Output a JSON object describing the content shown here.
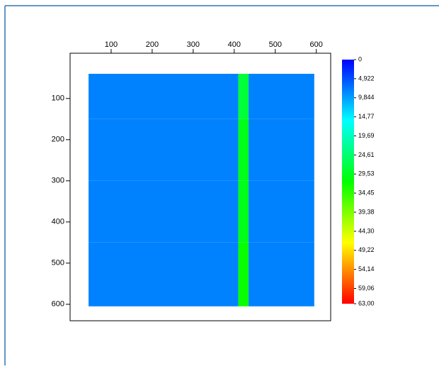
{
  "chart_data": {
    "type": "heatmap",
    "x": [
      45,
      410,
      435,
      595
    ],
    "y": [
      40,
      150,
      300,
      450,
      605
    ],
    "z": [
      [
        8,
        28,
        8
      ],
      [
        8,
        30,
        8
      ],
      [
        8,
        30,
        8
      ],
      [
        8,
        32,
        8
      ]
    ],
    "xlim": [
      0,
      635
    ],
    "ylim": [
      -10,
      640
    ],
    "y_inverted": true,
    "xticks": [
      100,
      200,
      300,
      400,
      500,
      600
    ],
    "yticks": [
      100,
      200,
      300,
      400,
      500,
      600
    ],
    "colormap": [
      "#0000ff",
      "#00ffff",
      "#00ff00",
      "#ffff00",
      "#ff0000"
    ],
    "colorbar_lim": [
      0,
      63
    ],
    "colorbar_ticks": [
      0,
      {
        "value": 4.922,
        "label": "4,922"
      },
      {
        "value": 9.844,
        "label": "9,844"
      },
      {
        "value": 14.77,
        "label": "14,77"
      },
      {
        "value": 19.69,
        "label": "19,69"
      },
      {
        "value": 24.61,
        "label": "24,61"
      },
      {
        "value": 29.53,
        "label": "29,53"
      },
      {
        "value": 34.45,
        "label": "34,45"
      },
      {
        "value": 39.38,
        "label": "39,38"
      },
      {
        "value": 44.3,
        "label": "44,30"
      },
      {
        "value": 49.22,
        "label": "49,22"
      },
      {
        "value": 54.14,
        "label": "54,14"
      },
      {
        "value": 59.06,
        "label": "59,06"
      },
      {
        "value": 63,
        "label": "63,00"
      }
    ]
  }
}
